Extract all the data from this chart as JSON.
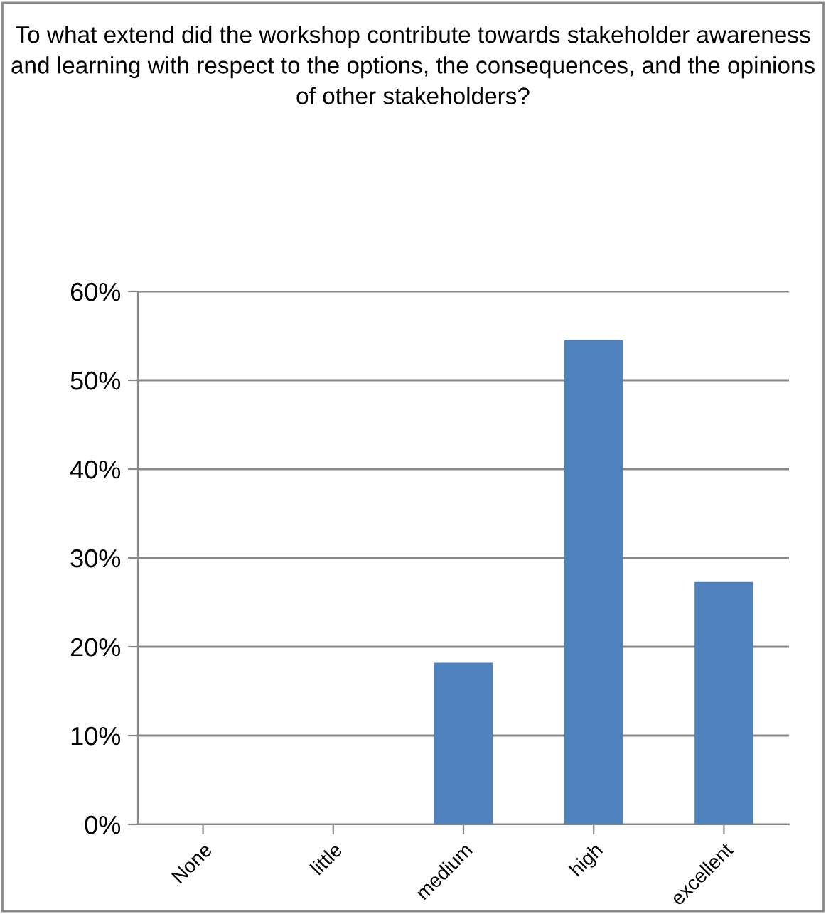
{
  "chart_data": {
    "type": "bar",
    "title": "To what extend did the workshop contribute towards stakeholder awareness and learning with respect to the options, the consequences, and the opinions of other stakeholders?",
    "categories": [
      "None",
      "little",
      "medium",
      "high",
      "excellent"
    ],
    "values": [
      0,
      0,
      18.2,
      54.5,
      27.3
    ],
    "color": "#4f81bd",
    "ylim": [
      0,
      60
    ],
    "yticks": [
      {
        "value": 0,
        "label": "0%"
      },
      {
        "value": 10,
        "label": "10%"
      },
      {
        "value": 20,
        "label": "20%"
      },
      {
        "value": 30,
        "label": "30%"
      },
      {
        "value": 40,
        "label": "40%"
      },
      {
        "value": 50,
        "label": "50%"
      },
      {
        "value": 60,
        "label": "60%"
      }
    ],
    "grid": "y",
    "legend": false
  }
}
